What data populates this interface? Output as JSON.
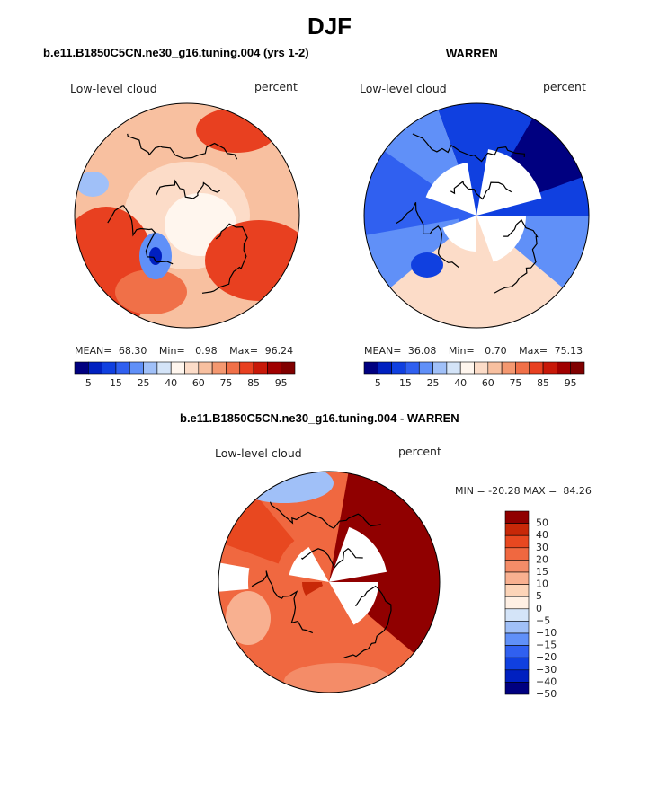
{
  "title": "DJF",
  "colors": {
    "abs_scale": [
      "#000080",
      "#0020c0",
      "#1040e0",
      "#3060f0",
      "#6090f8",
      "#a0c0f8",
      "#d4e4f8",
      "#fff6ee",
      "#fcdcc8",
      "#f8c0a0",
      "#f49870",
      "#f07048",
      "#e84020",
      "#c81808",
      "#a00000",
      "#800000"
    ],
    "diff_scale": [
      "#000080",
      "#0020c0",
      "#1040e0",
      "#3060f0",
      "#6090f8",
      "#a0c0f8",
      "#d4e4f8",
      "#fff0e4",
      "#fcd4b8",
      "#f8b090",
      "#f48c68",
      "#f06840",
      "#e84820",
      "#c82808",
      "#900000"
    ]
  },
  "panels": [
    {
      "id": "model",
      "title": "b.e11.B1850C5CN.ne30_g16.tuning.004 (yrs 1-2)",
      "var_label": "Low-level cloud",
      "units_label": "percent",
      "stats": {
        "mean_label": "MEAN=",
        "mean": "68.30",
        "min_label": "Min=",
        "min": "0.98",
        "max_label": "Max=",
        "max": "96.24"
      },
      "colorbar_ticks": [
        "5",
        "15",
        "25",
        "40",
        "60",
        "75",
        "85",
        "95"
      ]
    },
    {
      "id": "obs",
      "title": "WARREN",
      "var_label": "Low-level cloud",
      "units_label": "percent",
      "stats": {
        "mean_label": "MEAN=",
        "mean": "36.08",
        "min_label": "Min=",
        "min": "0.70",
        "max_label": "Max=",
        "max": "75.13"
      },
      "colorbar_ticks": [
        "5",
        "15",
        "25",
        "40",
        "60",
        "75",
        "85",
        "95"
      ]
    }
  ],
  "diff_panel": {
    "title": "b.e11.B1850C5CN.ne30_g16.tuning.004 - WARREN",
    "var_label": "Low-level cloud",
    "units_label": "percent",
    "minmax_text": "MIN = -20.28 MAX =  84.26",
    "colorbar_labels": [
      "50",
      "40",
      "30",
      "20",
      "15",
      "10",
      "5",
      "0",
      "−5",
      "−10",
      "−15",
      "−20",
      "−30",
      "−40",
      "−50"
    ]
  },
  "chart_data": [
    {
      "type": "heatmap",
      "projection": "polar stereographic (north)",
      "title": "b.e11.B1850C5CN.ne30_g16.tuning.004 (yrs 1-2)",
      "field": "Low-level cloud",
      "units": "percent",
      "mean": 68.3,
      "min": 0.98,
      "max": 96.24,
      "contour_levels": [
        5,
        10,
        15,
        20,
        25,
        30,
        40,
        50,
        60,
        65,
        70,
        75,
        80,
        85,
        90,
        95
      ]
    },
    {
      "type": "heatmap",
      "projection": "polar stereographic (north)",
      "title": "WARREN",
      "field": "Low-level cloud",
      "units": "percent",
      "mean": 36.08,
      "min": 0.7,
      "max": 75.13,
      "contour_levels": [
        5,
        10,
        15,
        20,
        25,
        30,
        40,
        50,
        60,
        65,
        70,
        75,
        80,
        85,
        90,
        95
      ]
    },
    {
      "type": "heatmap",
      "projection": "polar stereographic (north)",
      "title": "b.e11.B1850C5CN.ne30_g16.tuning.004 - WARREN",
      "field": "Low-level cloud",
      "units": "percent",
      "min": -20.28,
      "max": 84.26,
      "contour_levels": [
        -50,
        -40,
        -30,
        -20,
        -15,
        -10,
        -5,
        0,
        5,
        10,
        15,
        20,
        30,
        40,
        50
      ]
    }
  ]
}
